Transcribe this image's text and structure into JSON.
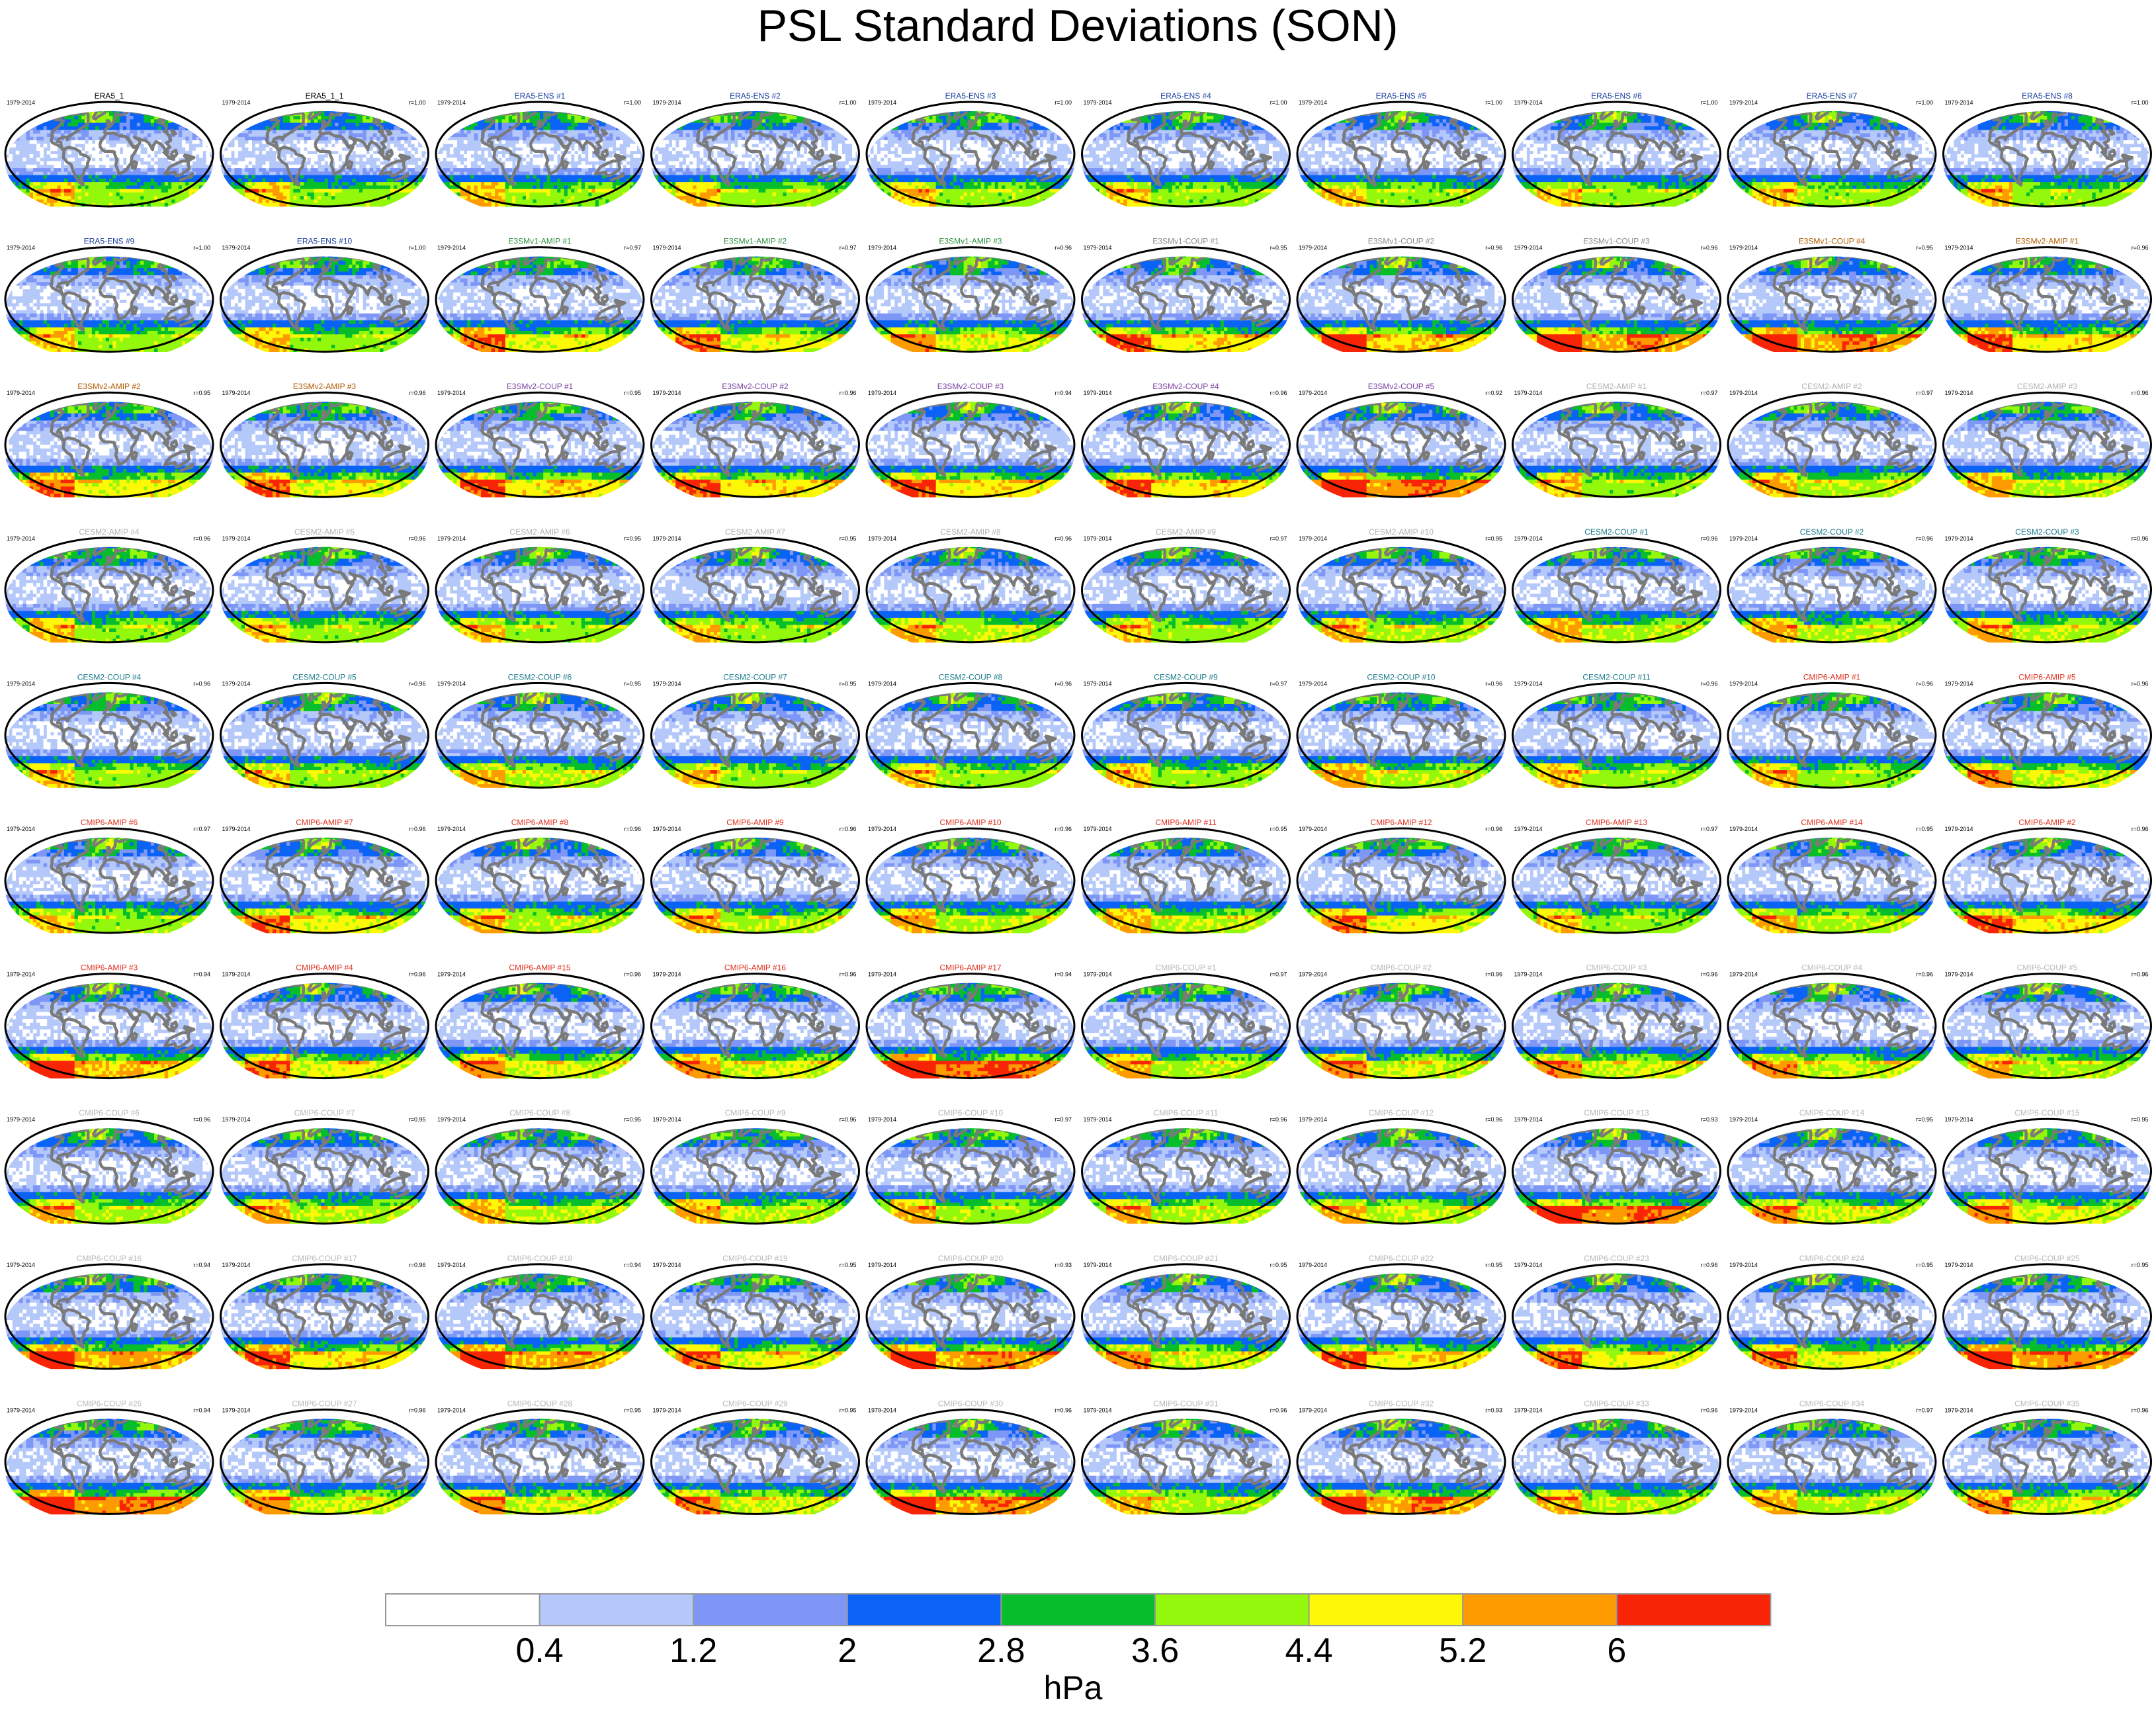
{
  "chart_data": {
    "type": "heatmap",
    "title": "PSL Standard Deviations (SON)",
    "period": "1979-2014",
    "colorbar": {
      "label": "hPa",
      "levels": [
        "0.4",
        "1.2",
        "2",
        "2.8",
        "3.6",
        "4.4",
        "5.2",
        "6"
      ],
      "colors": [
        "#ffffff",
        "#b4c8fa",
        "#7e97f7",
        "#0b63f6",
        "#06be2c",
        "#93f80b",
        "#fdf807",
        "#fd9b00",
        "#f82406"
      ]
    },
    "group_colors": {
      "ERA5": "#000000",
      "ERA5-ENS": "#1a3f9e",
      "E3SMv1": "#2e8f3f",
      "E3SMv1-COUP": "#8c8c8c",
      "E3SMv1-COUP-4": "#b05a00",
      "E3SMv2": "#b05a00",
      "E3SMv2-COUP": "#7a3fa0",
      "CESM2-AMIP": "#b0b0b0",
      "CESM2-COUP": "#1a7a8a",
      "CMIP6-AMIP": "#e0301e",
      "CMIP6-COUP": "#b8b8b8"
    },
    "panels": [
      {
        "name": "ERA5_1",
        "r": "",
        "color": "#000000",
        "intensity": 1.0
      },
      {
        "name": "ERA5_1_1",
        "r": "r=1.00",
        "color": "#000000",
        "intensity": 1.0
      },
      {
        "name": "ERA5-ENS   #1",
        "r": "r=1.00",
        "color": "#1a3f9e",
        "intensity": 1.0
      },
      {
        "name": "ERA5-ENS   #2",
        "r": "r=1.00",
        "color": "#1a3f9e",
        "intensity": 1.0
      },
      {
        "name": "ERA5-ENS   #3",
        "r": "r=1.00",
        "color": "#1a3f9e",
        "intensity": 1.0
      },
      {
        "name": "ERA5-ENS   #4",
        "r": "r=1.00",
        "color": "#1a3f9e",
        "intensity": 1.0
      },
      {
        "name": "ERA5-ENS   #5",
        "r": "r=1.00",
        "color": "#1a3f9e",
        "intensity": 1.0
      },
      {
        "name": "ERA5-ENS   #6",
        "r": "r=1.00",
        "color": "#1a3f9e",
        "intensity": 1.0
      },
      {
        "name": "ERA5-ENS   #7",
        "r": "r=1.00",
        "color": "#1a3f9e",
        "intensity": 1.0
      },
      {
        "name": "ERA5-ENS   #8",
        "r": "r=1.00",
        "color": "#1a3f9e",
        "intensity": 1.0
      },
      {
        "name": "ERA5-ENS   #9",
        "r": "r=1.00",
        "color": "#1a3f9e",
        "intensity": 1.0
      },
      {
        "name": "ERA5-ENS   #10",
        "r": "r=1.00",
        "color": "#1a3f9e",
        "intensity": 1.0
      },
      {
        "name": "E3SMv1-AMIP #1",
        "r": "r=0.97",
        "color": "#2e8f3f",
        "intensity": 1.15
      },
      {
        "name": "E3SMv1-AMIP #2",
        "r": "r=0.97",
        "color": "#2e8f3f",
        "intensity": 1.15
      },
      {
        "name": "E3SMv1-AMIP #3",
        "r": "r=0.96",
        "color": "#2e8f3f",
        "intensity": 1.1
      },
      {
        "name": "E3SMv1-COUP #1",
        "r": "r=0.95",
        "color": "#8c8c8c",
        "intensity": 1.2
      },
      {
        "name": "E3SMv1-COUP #2",
        "r": "r=0.96",
        "color": "#8c8c8c",
        "intensity": 1.25
      },
      {
        "name": "E3SMv1-COUP #3",
        "r": "r=0.96",
        "color": "#8c8c8c",
        "intensity": 1.35
      },
      {
        "name": "E3SMv1-COUP #4",
        "r": "r=0.95",
        "color": "#b05a00",
        "intensity": 1.35
      },
      {
        "name": "E3SMv2-AMIP #1",
        "r": "r=0.96",
        "color": "#b05a00",
        "intensity": 1.2
      },
      {
        "name": "E3SMv2-AMIP #2",
        "r": "r=0.95",
        "color": "#b05a00",
        "intensity": 1.15
      },
      {
        "name": "E3SMv2-AMIP #3",
        "r": "r=0.96",
        "color": "#b05a00",
        "intensity": 1.15
      },
      {
        "name": "E3SMv2-COUP #1",
        "r": "r=0.95",
        "color": "#7a3fa0",
        "intensity": 1.2
      },
      {
        "name": "E3SMv2-COUP #2",
        "r": "r=0.96",
        "color": "#7a3fa0",
        "intensity": 1.2
      },
      {
        "name": "E3SMv2-COUP #3",
        "r": "r=0.94",
        "color": "#7a3fa0",
        "intensity": 1.2
      },
      {
        "name": "E3SMv2-COUP #4",
        "r": "r=0.96",
        "color": "#7a3fa0",
        "intensity": 1.2
      },
      {
        "name": "E3SMv2-COUP #5",
        "r": "r=0.92",
        "color": "#7a3fa0",
        "intensity": 1.4
      },
      {
        "name": "CESM2-AMIP #1",
        "r": "r=0.97",
        "color": "#b0b0b0",
        "intensity": 1.0
      },
      {
        "name": "CESM2-AMIP #2",
        "r": "r=0.97",
        "color": "#b0b0b0",
        "intensity": 1.05
      },
      {
        "name": "CESM2-AMIP #3",
        "r": "r=0.96",
        "color": "#b0b0b0",
        "intensity": 1.05
      },
      {
        "name": "CESM2-AMIP #4",
        "r": "r=0.96",
        "color": "#b0b0b0",
        "intensity": 1.0
      },
      {
        "name": "CESM2-AMIP #5",
        "r": "r=0.96",
        "color": "#b0b0b0",
        "intensity": 1.0
      },
      {
        "name": "CESM2-AMIP #6",
        "r": "r=0.95",
        "color": "#b0b0b0",
        "intensity": 1.0
      },
      {
        "name": "CESM2-AMIP #7",
        "r": "r=0.95",
        "color": "#b0b0b0",
        "intensity": 1.0
      },
      {
        "name": "CESM2-AMIP #8",
        "r": "r=0.96",
        "color": "#b0b0b0",
        "intensity": 1.05
      },
      {
        "name": "CESM2-AMIP #9",
        "r": "r=0.97",
        "color": "#b0b0b0",
        "intensity": 1.0
      },
      {
        "name": "CESM2-AMIP #10",
        "r": "r=0.95",
        "color": "#b0b0b0",
        "intensity": 1.05
      },
      {
        "name": "CESM2-COUP #1",
        "r": "r=0.96",
        "color": "#1a7a8a",
        "intensity": 1.05
      },
      {
        "name": "CESM2-COUP #2",
        "r": "r=0.96",
        "color": "#1a7a8a",
        "intensity": 1.05
      },
      {
        "name": "CESM2-COUP #3",
        "r": "r=0.96",
        "color": "#1a7a8a",
        "intensity": 1.05
      },
      {
        "name": "CESM2-COUP #4",
        "r": "r=0.96",
        "color": "#1a7a8a",
        "intensity": 1.0
      },
      {
        "name": "CESM2-COUP #5",
        "r": "r=0.96",
        "color": "#1a7a8a",
        "intensity": 1.0
      },
      {
        "name": "CESM2-COUP #6",
        "r": "r=0.95",
        "color": "#1a7a8a",
        "intensity": 1.05
      },
      {
        "name": "CESM2-COUP #7",
        "r": "r=0.95",
        "color": "#1a7a8a",
        "intensity": 1.0
      },
      {
        "name": "CESM2-COUP #8",
        "r": "r=0.96",
        "color": "#1a7a8a",
        "intensity": 1.0
      },
      {
        "name": "CESM2-COUP #9",
        "r": "r=0.97",
        "color": "#1a7a8a",
        "intensity": 1.0
      },
      {
        "name": "CESM2-COUP #10",
        "r": "r=0.96",
        "color": "#1a7a8a",
        "intensity": 1.05
      },
      {
        "name": "CESM2-COUP #11",
        "r": "r=0.96",
        "color": "#1a7a8a",
        "intensity": 1.0
      },
      {
        "name": "CMIP6-AMIP #1",
        "r": "r=0.96",
        "color": "#e0301e",
        "intensity": 1.0
      },
      {
        "name": "CMIP6-AMIP #5",
        "r": "r=0.96",
        "color": "#e0301e",
        "intensity": 1.1
      },
      {
        "name": "CMIP6-AMIP #6",
        "r": "r=0.97",
        "color": "#e0301e",
        "intensity": 1.0
      },
      {
        "name": "CMIP6-AMIP #7",
        "r": "r=0.96",
        "color": "#e0301e",
        "intensity": 1.15
      },
      {
        "name": "CMIP6-AMIP #8",
        "r": "r=0.96",
        "color": "#e0301e",
        "intensity": 1.05
      },
      {
        "name": "CMIP6-AMIP #9",
        "r": "r=0.96",
        "color": "#e0301e",
        "intensity": 1.05
      },
      {
        "name": "CMIP6-AMIP #10",
        "r": "r=0.96",
        "color": "#e0301e",
        "intensity": 1.05
      },
      {
        "name": "CMIP6-AMIP #11",
        "r": "r=0.95",
        "color": "#e0301e",
        "intensity": 1.05
      },
      {
        "name": "CMIP6-AMIP #12",
        "r": "r=0.96",
        "color": "#e0301e",
        "intensity": 1.15
      },
      {
        "name": "CMIP6-AMIP #13",
        "r": "r=0.97",
        "color": "#e0301e",
        "intensity": 1.0
      },
      {
        "name": "CMIP6-AMIP #14",
        "r": "r=0.95",
        "color": "#e0301e",
        "intensity": 1.05
      },
      {
        "name": "CMIP6-AMIP #2",
        "r": "r=0.96",
        "color": "#e0301e",
        "intensity": 1.2
      },
      {
        "name": "CMIP6-AMIP #3",
        "r": "r=0.94",
        "color": "#e0301e",
        "intensity": 1.25
      },
      {
        "name": "CMIP6-AMIP #4",
        "r": "r=0.96",
        "color": "#e0301e",
        "intensity": 1.15
      },
      {
        "name": "CMIP6-AMIP #15",
        "r": "r=0.96",
        "color": "#e0301e",
        "intensity": 1.1
      },
      {
        "name": "CMIP6-AMIP #16",
        "r": "r=0.96",
        "color": "#e0301e",
        "intensity": 1.1
      },
      {
        "name": "CMIP6-AMIP #17",
        "r": "r=0.94",
        "color": "#e0301e",
        "intensity": 1.45
      },
      {
        "name": "CMIP6-COUP #1",
        "r": "r=0.97",
        "color": "#b8b8b8",
        "intensity": 1.05
      },
      {
        "name": "CMIP6-COUP #2",
        "r": "r=0.96",
        "color": "#b8b8b8",
        "intensity": 1.1
      },
      {
        "name": "CMIP6-COUP #3",
        "r": "r=0.96",
        "color": "#b8b8b8",
        "intensity": 1.1
      },
      {
        "name": "CMIP6-COUP #4",
        "r": "r=0.96",
        "color": "#b8b8b8",
        "intensity": 1.1
      },
      {
        "name": "CMIP6-COUP #5",
        "r": "r=0.96",
        "color": "#b8b8b8",
        "intensity": 1.05
      },
      {
        "name": "CMIP6-COUP #6",
        "r": "r=0.96",
        "color": "#b8b8b8",
        "intensity": 1.05
      },
      {
        "name": "CMIP6-COUP #7",
        "r": "r=0.95",
        "color": "#b8b8b8",
        "intensity": 1.05
      },
      {
        "name": "CMIP6-COUP #8",
        "r": "r=0.95",
        "color": "#b8b8b8",
        "intensity": 1.05
      },
      {
        "name": "CMIP6-COUP #9",
        "r": "r=0.96",
        "color": "#b8b8b8",
        "intensity": 1.05
      },
      {
        "name": "CMIP6-COUP #10",
        "r": "r=0.97",
        "color": "#b8b8b8",
        "intensity": 1.0
      },
      {
        "name": "CMIP6-COUP #11",
        "r": "r=0.96",
        "color": "#b8b8b8",
        "intensity": 1.05
      },
      {
        "name": "CMIP6-COUP #12",
        "r": "r=0.96",
        "color": "#b8b8b8",
        "intensity": 1.05
      },
      {
        "name": "CMIP6-COUP #13",
        "r": "r=0.93",
        "color": "#b8b8b8",
        "intensity": 1.4
      },
      {
        "name": "CMIP6-COUP #14",
        "r": "r=0.95",
        "color": "#b8b8b8",
        "intensity": 1.1
      },
      {
        "name": "CMIP6-COUP #15",
        "r": "r=0.95",
        "color": "#b8b8b8",
        "intensity": 1.1
      },
      {
        "name": "CMIP6-COUP #16",
        "r": "r=0.94",
        "color": "#b8b8b8",
        "intensity": 1.3
      },
      {
        "name": "CMIP6-COUP #17",
        "r": "r=0.96",
        "color": "#b8b8b8",
        "intensity": 1.2
      },
      {
        "name": "CMIP6-COUP #18",
        "r": "r=0.94",
        "color": "#b8b8b8",
        "intensity": 1.3
      },
      {
        "name": "CMIP6-COUP #19",
        "r": "r=0.95",
        "color": "#b8b8b8",
        "intensity": 1.15
      },
      {
        "name": "CMIP6-COUP #20",
        "r": "r=0.93",
        "color": "#b8b8b8",
        "intensity": 1.35
      },
      {
        "name": "CMIP6-COUP #21",
        "r": "r=0.95",
        "color": "#b8b8b8",
        "intensity": 1.1
      },
      {
        "name": "CMIP6-COUP #22",
        "r": "r=0.95",
        "color": "#b8b8b8",
        "intensity": 1.2
      },
      {
        "name": "CMIP6-COUP #23",
        "r": "r=0.96",
        "color": "#b8b8b8",
        "intensity": 1.15
      },
      {
        "name": "CMIP6-COUP #24",
        "r": "r=0.95",
        "color": "#b8b8b8",
        "intensity": 1.15
      },
      {
        "name": "CMIP6-COUP #25",
        "r": "r=0.95",
        "color": "#b8b8b8",
        "intensity": 1.35
      },
      {
        "name": "CMIP6-COUP #26",
        "r": "r=0.94",
        "color": "#b8b8b8",
        "intensity": 1.4
      },
      {
        "name": "CMIP6-COUP #27",
        "r": "r=0.96",
        "color": "#b8b8b8",
        "intensity": 1.1
      },
      {
        "name": "CMIP6-COUP #28",
        "r": "r=0.95",
        "color": "#b8b8b8",
        "intensity": 1.1
      },
      {
        "name": "CMIP6-COUP #29",
        "r": "r=0.95",
        "color": "#b8b8b8",
        "intensity": 1.1
      },
      {
        "name": "CMIP6-COUP #30",
        "r": "r=0.96",
        "color": "#b8b8b8",
        "intensity": 1.35
      },
      {
        "name": "CMIP6-COUP #31",
        "r": "r=0.96",
        "color": "#b8b8b8",
        "intensity": 1.05
      },
      {
        "name": "CMIP6-COUP #32",
        "r": "r=0.93",
        "color": "#b8b8b8",
        "intensity": 1.35
      },
      {
        "name": "CMIP6-COUP #33",
        "r": "r=0.96",
        "color": "#b8b8b8",
        "intensity": 1.05
      },
      {
        "name": "CMIP6-COUP #34",
        "r": "r=0.97",
        "color": "#b8b8b8",
        "intensity": 1.05
      },
      {
        "name": "CMIP6-COUP #35",
        "r": "r=0.96",
        "color": "#b8b8b8",
        "intensity": 1.1
      }
    ]
  }
}
